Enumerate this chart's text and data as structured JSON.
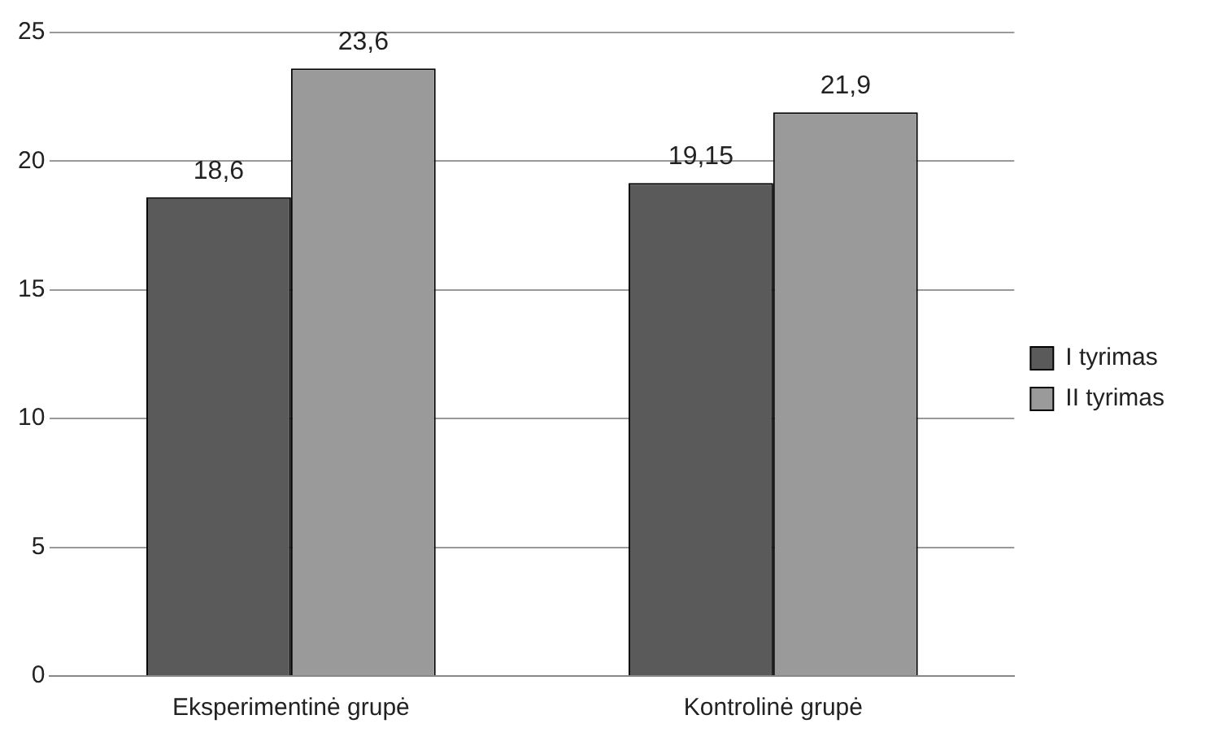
{
  "chart_data": {
    "type": "bar",
    "categories": [
      "Eksperimentinė grupė",
      "Kontrolinė grupė"
    ],
    "series": [
      {
        "name": "I tyrimas",
        "color": "#5a5a5a",
        "values": [
          18.6,
          19.15
        ],
        "value_labels": [
          "18,6",
          "19,15"
        ]
      },
      {
        "name": "II tyrimas",
        "color": "#9a9a9a",
        "values": [
          23.6,
          21.9
        ],
        "value_labels": [
          "23,6",
          "21,9"
        ]
      }
    ],
    "ylim": [
      0,
      25
    ],
    "yticks": [
      0,
      5,
      10,
      15,
      20,
      25
    ],
    "grid": "y",
    "legend": "right"
  }
}
